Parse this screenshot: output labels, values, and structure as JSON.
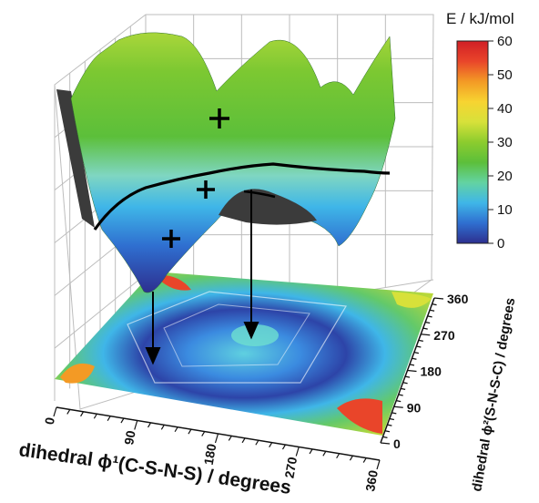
{
  "chart_data": {
    "type": "surface3d",
    "title": "",
    "xlabel": "dihedral ϕ¹(C-S-N-S) / degrees",
    "ylabel": "dihedral ϕ²(S-N-S-C) / degrees",
    "x_ticks": [
      "0",
      "90",
      "180",
      "270",
      "360"
    ],
    "y_ticks": [
      "0",
      "90",
      "180",
      "270",
      "360"
    ],
    "xlim": [
      0,
      360
    ],
    "ylim": [
      0,
      360
    ],
    "colorbar": {
      "label": "E / kJ/mol",
      "ticks": [
        "0",
        "10",
        "20",
        "30",
        "40",
        "50",
        "60"
      ],
      "range": [
        0,
        60
      ],
      "colors": [
        "#2d2f8f",
        "#2f6fd0",
        "#3fb6e8",
        "#63d3a2",
        "#5cbf3a",
        "#8ccc2e",
        "#d7e13a",
        "#f7d431",
        "#f39a25",
        "#e9452a",
        "#d11f26"
      ]
    },
    "minima": [
      {
        "phi1": 100,
        "phi2": 90
      },
      {
        "phi1": 180,
        "phi2": 180
      },
      {
        "phi1": 100,
        "phi2": 270
      }
    ],
    "saddle_points": 3,
    "grid": true
  }
}
